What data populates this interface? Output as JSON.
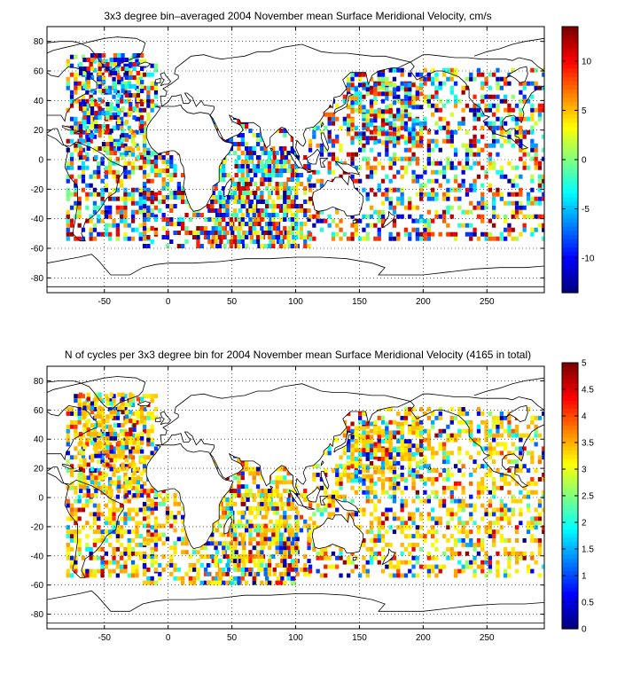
{
  "chart_data": [
    {
      "type": "heatmap",
      "title": "3x3 degree bin–averaged 2004 November mean Surface Meridional Velocity, cm/s",
      "xlim": [
        -95,
        295
      ],
      "ylim": [
        -90,
        90
      ],
      "xticks": [
        -50,
        0,
        50,
        100,
        150,
        200,
        250
      ],
      "xtick_labels": [
        "-50",
        "0",
        "50",
        "100",
        "150",
        "200",
        "250"
      ],
      "yticks": [
        80,
        60,
        40,
        20,
        0,
        -20,
        -40,
        -60,
        -80
      ],
      "ytick_labels": [
        "80",
        "60",
        "40",
        "20",
        "0",
        "-20",
        "-40",
        "-60",
        "-80"
      ],
      "grid": true,
      "colormap": "jet",
      "colorbar": {
        "range": [
          -13.5,
          13.5
        ],
        "ticks": [
          10,
          5,
          0,
          -5,
          -10
        ],
        "tick_labels": [
          "10",
          "5",
          "0",
          "-5",
          "-10"
        ]
      },
      "bin_size_deg": 3
    },
    {
      "type": "heatmap",
      "title": "N of cycles per 3x3 degree bin for 2004 November mean Surface Meridional Velocity (4165 in total)",
      "xlim": [
        -95,
        295
      ],
      "ylim": [
        -90,
        90
      ],
      "xticks": [
        -50,
        0,
        50,
        100,
        150,
        200,
        250
      ],
      "xtick_labels": [
        "-50",
        "0",
        "50",
        "100",
        "150",
        "200",
        "250"
      ],
      "yticks": [
        80,
        60,
        40,
        20,
        0,
        -20,
        -40,
        -60,
        -80
      ],
      "ytick_labels": [
        "80",
        "60",
        "40",
        "20",
        "0",
        "-20",
        "-40",
        "-60",
        "-80"
      ],
      "grid": true,
      "colormap": "jet",
      "colorbar": {
        "range": [
          0,
          5
        ],
        "ticks": [
          5,
          4.5,
          4,
          3.5,
          3,
          2.5,
          2,
          1.5,
          1,
          0.5,
          0
        ],
        "tick_labels": [
          "5",
          "4.5",
          "4",
          "3.5",
          "3",
          "2.5",
          "2",
          "1.5",
          "1",
          "0.5",
          "0"
        ]
      },
      "bin_size_deg": 3
    }
  ]
}
